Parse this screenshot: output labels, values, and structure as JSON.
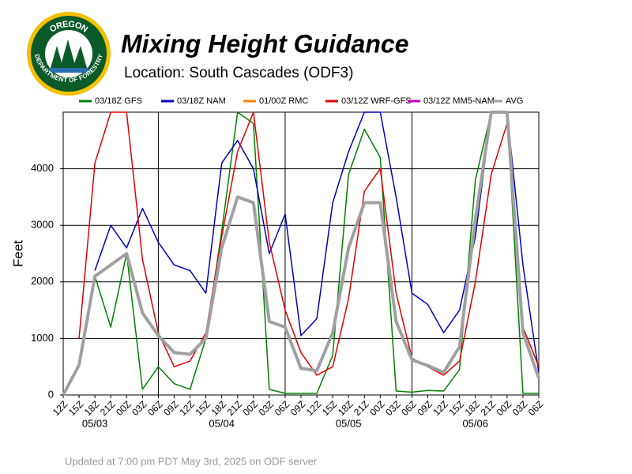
{
  "chart_data": {
    "type": "line",
    "title": "Mixing Height Guidance",
    "subtitle": "Location:  South Cascades (ODF3)",
    "y_label": "Feet",
    "footnote": "Updated at 7:00 pm PDT May 3rd, 2025 on ODF server",
    "logo_text": [
      "OREGON",
      "DEPARTMENT OF FORESTRY"
    ],
    "categories": [
      "12Z",
      "15Z",
      "18Z",
      "21Z",
      "00Z",
      "03Z",
      "06Z",
      "09Z",
      "12Z",
      "15Z",
      "18Z",
      "21Z",
      "00Z",
      "03Z",
      "06Z",
      "09Z",
      "12Z",
      "15Z",
      "18Z",
      "21Z",
      "00Z",
      "03Z",
      "06Z",
      "09Z",
      "12Z",
      "15Z",
      "18Z",
      "21Z",
      "00Z",
      "03Z",
      "06Z"
    ],
    "dates": [
      "05/03",
      "05/04",
      "05/05",
      "05/06"
    ],
    "ylim": [
      0,
      5000
    ],
    "yticks": [
      0,
      1000,
      2000,
      3000,
      4000
    ],
    "grid": true,
    "series": [
      {
        "name": "03/18Z  GFS",
        "color": "#008000",
        "width": 1.5,
        "values": [
          null,
          null,
          2100,
          1200,
          2500,
          100,
          500,
          200,
          100,
          1000,
          2900,
          5000,
          4800,
          100,
          30,
          30,
          30,
          700,
          3900,
          4700,
          4200,
          70,
          50,
          80,
          70,
          450,
          3800,
          5000,
          5000,
          30,
          30
        ]
      },
      {
        "name": "03/18Z  NAM",
        "color": "#0000c0",
        "width": 1.5,
        "values": [
          null,
          null,
          2200,
          3000,
          2600,
          3300,
          2700,
          2300,
          2200,
          1800,
          4100,
          4500,
          4000,
          2500,
          3200,
          1050,
          1350,
          3400,
          4300,
          5000,
          5000,
          3500,
          1800,
          1600,
          1100,
          1500,
          2800,
          5000,
          5000,
          2300,
          400
        ]
      },
      {
        "name": "01/00Z  RMC",
        "color": "#ff8000",
        "width": 1.5,
        "values": [
          null,
          null,
          null,
          null,
          null,
          null,
          null,
          null,
          null,
          null,
          null,
          null,
          null,
          null,
          null,
          null,
          null,
          null,
          null,
          null,
          null,
          null,
          null,
          null,
          null,
          null,
          null,
          null,
          null,
          null,
          null
        ]
      },
      {
        "name": "03/12Z  WRF-GFS",
        "color": "#e00000",
        "width": 1.5,
        "values": [
          null,
          1000,
          4100,
          5000,
          5000,
          2400,
          1100,
          500,
          600,
          1100,
          2800,
          4300,
          5000,
          2700,
          1500,
          750,
          350,
          500,
          1700,
          3600,
          4000,
          1800,
          650,
          500,
          350,
          600,
          2000,
          3900,
          4800,
          1200,
          500
        ]
      },
      {
        "name": "03/12Z  MM5-NAM",
        "color": "#c000c0",
        "width": 1.5,
        "values": [
          null,
          null,
          null,
          null,
          null,
          null,
          null,
          null,
          null,
          null,
          null,
          null,
          null,
          null,
          null,
          null,
          null,
          null,
          null,
          null,
          null,
          null,
          null,
          null,
          null,
          null,
          null,
          null,
          null,
          null,
          null
        ]
      },
      {
        "name": "AVG",
        "color": "#a0a0a0",
        "width": 4,
        "values": [
          0,
          530,
          2100,
          2300,
          2500,
          1450,
          1050,
          750,
          720,
          1000,
          2600,
          3500,
          3400,
          1300,
          1200,
          470,
          430,
          1100,
          2600,
          3400,
          3400,
          1300,
          620,
          520,
          400,
          850,
          3100,
          5000,
          5000,
          1100,
          300
        ]
      }
    ]
  }
}
